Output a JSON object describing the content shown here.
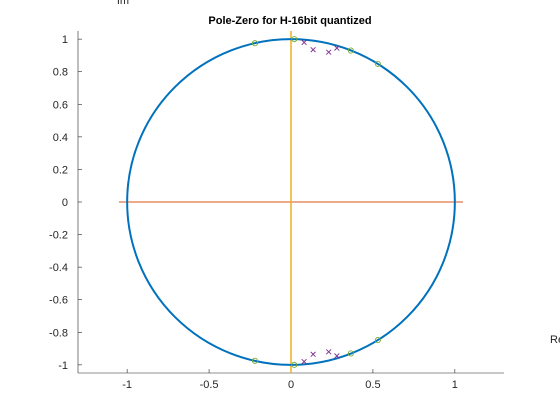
{
  "chart_data": {
    "type": "scatter",
    "title": "Pole-Zero for H-16bit quantized",
    "xlabel": "Re",
    "ylabel": "Im",
    "xlim": [
      -1.3,
      1.3
    ],
    "ylim": [
      -1.05,
      1.05
    ],
    "xticks": [
      -1,
      -0.5,
      0,
      0.5,
      1
    ],
    "xtick_labels": [
      "-1",
      "-0.5",
      "0",
      "0.5",
      "1"
    ],
    "yticks": [
      -1,
      -0.8,
      -0.6,
      -0.4,
      -0.2,
      0,
      0.2,
      0.4,
      0.6,
      0.8,
      1
    ],
    "ytick_labels": [
      "-1",
      "-0.8",
      "-0.6",
      "-0.4",
      "-0.2",
      "0",
      "0.2",
      "0.4",
      "0.6",
      "0.8",
      "1"
    ],
    "grid": false,
    "unit_circle": {
      "radius": 1,
      "color": "#0072BD"
    },
    "real_axis_line": {
      "x": [
        -1.05,
        1.05
      ],
      "y": 0,
      "color": "#D95319"
    },
    "imag_axis_line": {
      "x": 0,
      "y": [
        -1.05,
        1.05
      ],
      "color": "#EDB120"
    },
    "series": [
      {
        "marker": "o",
        "color": "#77AC30",
        "points": [
          [
            -0.22,
            0.975
          ],
          [
            0.02,
            1.0
          ],
          [
            0.365,
            0.93
          ],
          [
            0.53,
            0.848
          ],
          [
            -0.22,
            -0.975
          ],
          [
            0.02,
            -1.0
          ],
          [
            0.365,
            -0.93
          ],
          [
            0.53,
            -0.848
          ]
        ]
      },
      {
        "marker": "x",
        "color": "#7E2F8E",
        "points": [
          [
            0.08,
            0.98
          ],
          [
            0.135,
            0.935
          ],
          [
            0.23,
            0.92
          ],
          [
            0.28,
            0.945
          ],
          [
            0.08,
            -0.98
          ],
          [
            0.135,
            -0.935
          ],
          [
            0.23,
            -0.92
          ],
          [
            0.28,
            -0.945
          ]
        ]
      }
    ]
  }
}
